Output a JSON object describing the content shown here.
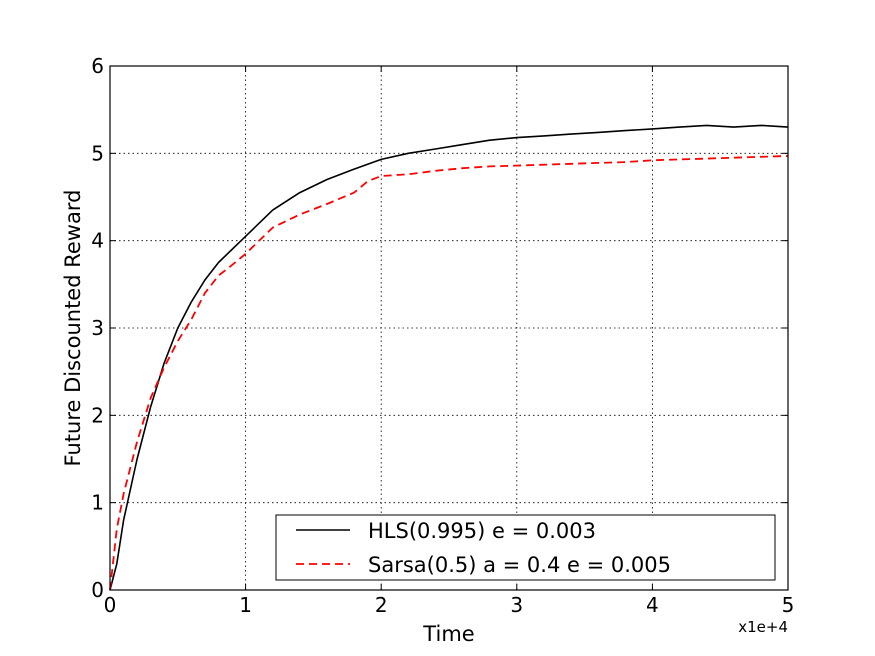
{
  "chart_data": {
    "type": "line",
    "title": "",
    "xlabel": "Time",
    "ylabel": "Future Discounted Reward",
    "x_offset_label": "x1e+4",
    "xlim": [
      0,
      5
    ],
    "ylim": [
      0,
      6
    ],
    "xticks": [
      "0",
      "1",
      "2",
      "3",
      "4",
      "5"
    ],
    "yticks": [
      "0",
      "1",
      "2",
      "3",
      "4",
      "5",
      "6"
    ],
    "grid": true,
    "legend_position": "lower-right",
    "series": [
      {
        "name": "HLS(0.995) e = 0.003",
        "color": "#000000",
        "style": "solid",
        "x": [
          0,
          0.05,
          0.1,
          0.2,
          0.3,
          0.4,
          0.5,
          0.6,
          0.7,
          0.8,
          0.9,
          1.0,
          1.2,
          1.4,
          1.6,
          1.8,
          2.0,
          2.2,
          2.4,
          2.6,
          2.8,
          3.0,
          3.2,
          3.4,
          3.6,
          3.8,
          4.0,
          4.2,
          4.4,
          4.6,
          4.8,
          5.0
        ],
        "y": [
          0,
          0.3,
          0.8,
          1.5,
          2.1,
          2.6,
          3.0,
          3.3,
          3.55,
          3.75,
          3.9,
          4.05,
          4.35,
          4.55,
          4.7,
          4.82,
          4.93,
          5.0,
          5.05,
          5.1,
          5.15,
          5.18,
          5.2,
          5.22,
          5.24,
          5.26,
          5.28,
          5.3,
          5.32,
          5.3,
          5.32,
          5.3
        ]
      },
      {
        "name": "Sarsa(0.5) a = 0.4 e = 0.005",
        "color": "#ff0000",
        "style": "dashed",
        "x": [
          0,
          0.05,
          0.1,
          0.2,
          0.3,
          0.4,
          0.5,
          0.6,
          0.7,
          0.8,
          0.9,
          1.0,
          1.2,
          1.4,
          1.6,
          1.8,
          1.9,
          2.0,
          2.2,
          2.4,
          2.6,
          2.8,
          3.0,
          3.2,
          3.4,
          3.6,
          3.8,
          4.0,
          4.2,
          4.4,
          4.6,
          4.8,
          5.0
        ],
        "y": [
          0,
          0.7,
          1.1,
          1.7,
          2.2,
          2.55,
          2.85,
          3.1,
          3.4,
          3.6,
          3.72,
          3.85,
          4.15,
          4.3,
          4.42,
          4.55,
          4.68,
          4.74,
          4.76,
          4.8,
          4.83,
          4.85,
          4.86,
          4.87,
          4.88,
          4.89,
          4.9,
          4.92,
          4.93,
          4.94,
          4.95,
          4.96,
          4.97
        ]
      }
    ]
  }
}
